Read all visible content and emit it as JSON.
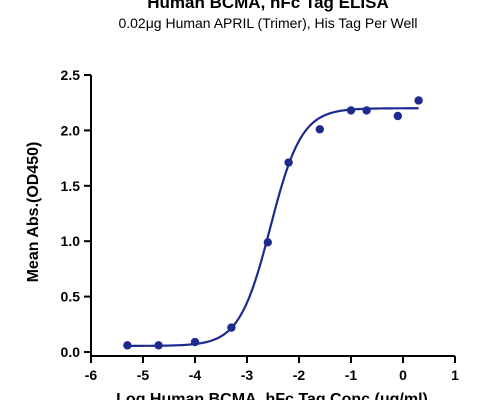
{
  "chart_data": {
    "type": "scatter",
    "title": "Human BCMA, hFc Tag ELISA",
    "subtitle": "0.02μg Human APRIL (Trimer), His Tag Per Well",
    "xlabel": "Log Human BCMA, hFc Tag Conc.(μg/ml)",
    "ylabel": "Mean Abs.(OD450)",
    "xlim": [
      -6,
      1
    ],
    "ylim": [
      0,
      2.5
    ],
    "x_ticks": [
      -6,
      -5,
      -4,
      -3,
      -2,
      -1,
      0,
      1
    ],
    "x_tick_labels": [
      "-6",
      "-5",
      "-4",
      "-3",
      "-2",
      "-1",
      "0",
      "1"
    ],
    "y_ticks": [
      0,
      0.5,
      1.0,
      1.5,
      2.0,
      2.5
    ],
    "y_tick_labels": [
      "0.0",
      "0.5",
      "1.0",
      "1.5",
      "2.0",
      "2.5"
    ],
    "grid": false,
    "color": "#1f2a8f",
    "points": [
      {
        "x": -5.3,
        "y": 0.06
      },
      {
        "x": -4.7,
        "y": 0.06
      },
      {
        "x": -4.0,
        "y": 0.09
      },
      {
        "x": -3.3,
        "y": 0.22
      },
      {
        "x": -2.6,
        "y": 0.99
      },
      {
        "x": -2.2,
        "y": 1.71
      },
      {
        "x": -1.6,
        "y": 2.01
      },
      {
        "x": -1.0,
        "y": 2.18
      },
      {
        "x": -0.7,
        "y": 2.18
      },
      {
        "x": -0.1,
        "y": 2.13
      },
      {
        "x": 0.3,
        "y": 2.27
      }
    ],
    "fit": {
      "model": "4PL",
      "bottom": 0.055,
      "top": 2.2,
      "log_ec50": -2.55,
      "hill_slope": 1.45,
      "x_range": [
        -5.3,
        0.3
      ]
    }
  }
}
